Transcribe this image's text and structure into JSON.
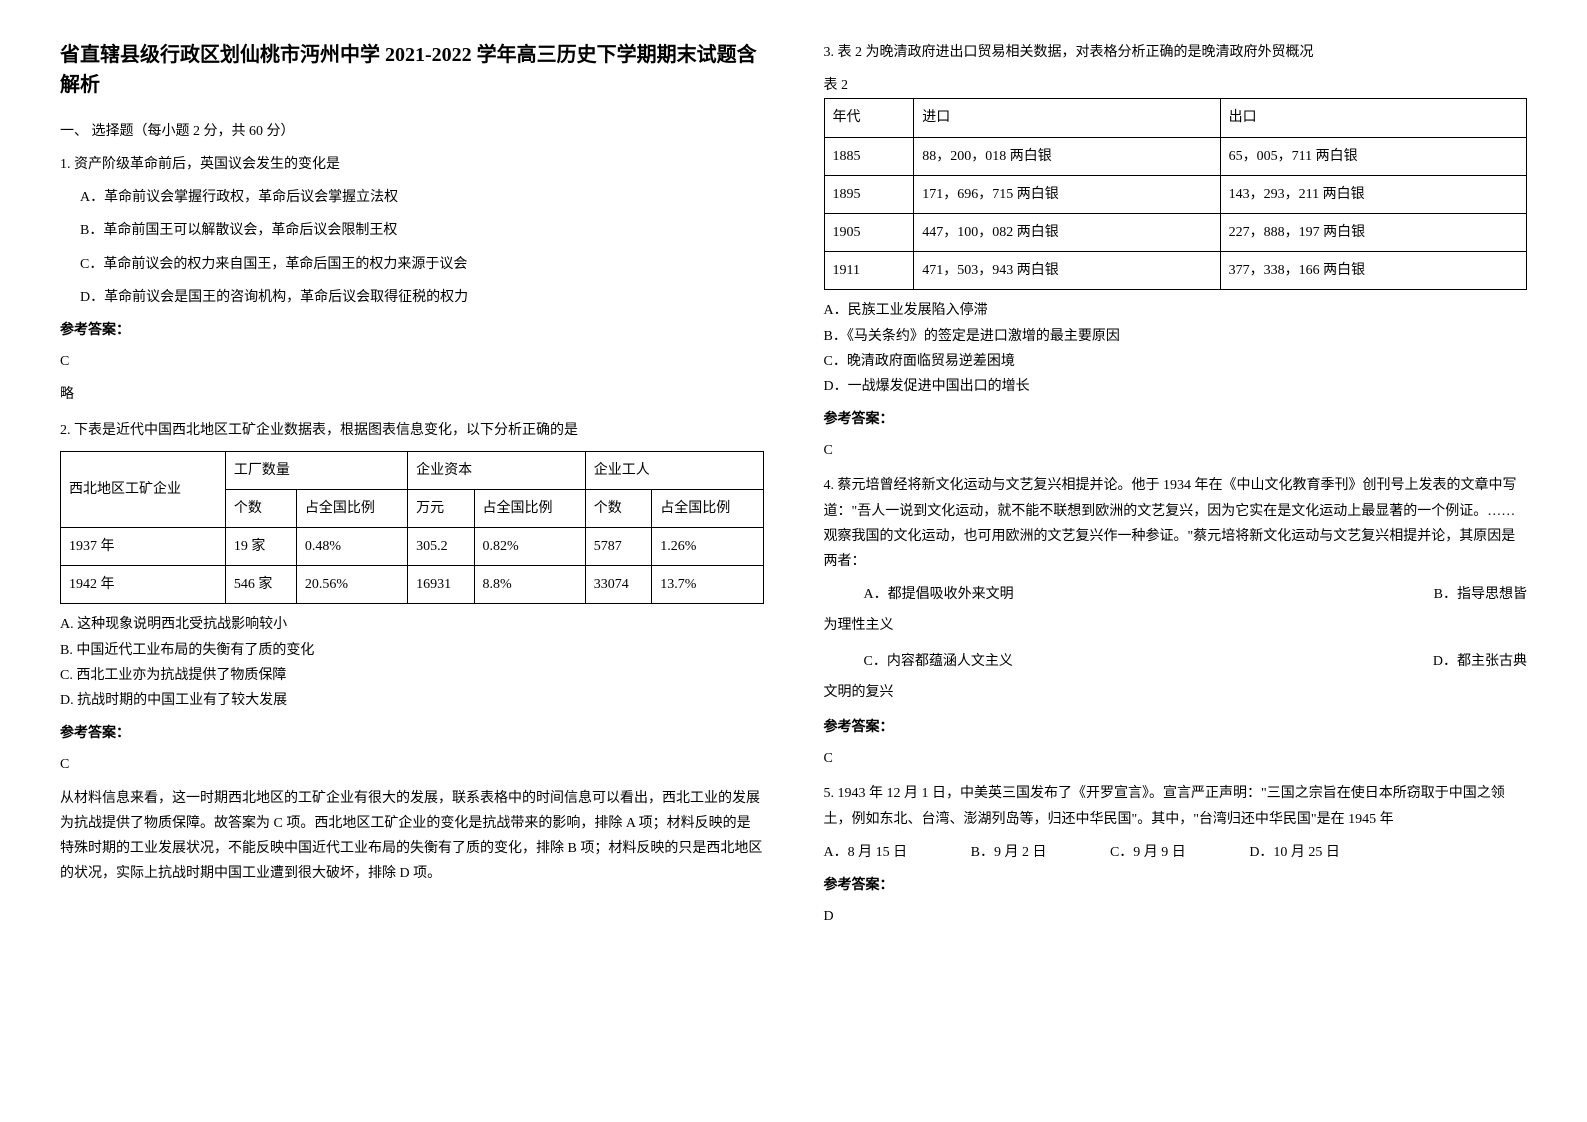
{
  "title": "省直辖县级行政区划仙桃市沔州中学 2021-2022 学年高三历史下学期期末试题含解析",
  "section1_heading": "一、 选择题（每小题 2 分，共 60 分）",
  "q1": {
    "text": "1. 资产阶级革命前后，英国议会发生的变化是",
    "optA": "A．革命前议会掌握行政权，革命后议会掌握立法权",
    "optB": "B．革命前国王可以解散议会，革命后议会限制王权",
    "optC": "C．革命前议会的权力来自国王，革命后国王的权力来源于议会",
    "optD": "D．革命前议会是国王的咨询机构，革命后议会取得征税的权力",
    "answer_label": "参考答案：",
    "answer": "C",
    "explanation": "略"
  },
  "q2": {
    "text": "2. 下表是近代中国西北地区工矿企业数据表，根据图表信息变化，以下分析正确的是",
    "table": {
      "h_region": "西北地区工矿企业",
      "h_factory": "工厂数量",
      "h_capital": "企业资本",
      "h_workers": "企业工人",
      "h_count": "个数",
      "h_ratio": "占全国比例",
      "h_wan": "万元",
      "r1": [
        "1937 年",
        "19 家",
        "0.48%",
        "305.2",
        "0.82%",
        "5787",
        "1.26%"
      ],
      "r2": [
        "1942 年",
        "546 家",
        "20.56%",
        "16931",
        "8.8%",
        "33074",
        "13.7%"
      ]
    },
    "optA": "A. 这种现象说明西北受抗战影响较小",
    "optB": "B. 中国近代工业布局的失衡有了质的变化",
    "optC": "C. 西北工业亦为抗战提供了物质保障",
    "optD": "D. 抗战时期的中国工业有了较大发展",
    "answer_label": "参考答案：",
    "answer": "C",
    "explanation": "从材料信息来看，这一时期西北地区的工矿企业有很大的发展，联系表格中的时间信息可以看出，西北工业的发展为抗战提供了物质保障。故答案为 C 项。西北地区工矿企业的变化是抗战带来的影响，排除 A 项；材料反映的是特殊时期的工业发展状况，不能反映中国近代工业布局的失衡有了质的变化，排除 B 项；材料反映的只是西北地区的状况，实际上抗战时期中国工业遭到很大破坏，排除 D 项。"
  },
  "q3": {
    "text": "3. 表 2 为晚清政府进出口贸易相关数据，对表格分析正确的是晚清政府外贸概况",
    "table_label": "表 2",
    "table": {
      "h_year": "年代",
      "h_import": "进口",
      "h_export": "出口",
      "rows": [
        [
          "1885",
          "88，200，018 两白银",
          "65，005，711 两白银"
        ],
        [
          "1895",
          "171，696，715 两白银",
          "143，293，211 两白银"
        ],
        [
          "1905",
          "447，100，082 两白银",
          "227，888，197 两白银"
        ],
        [
          "1911",
          "471，503，943 两白银",
          "377，338，166 两白银"
        ]
      ]
    },
    "optA": "A．民族工业发展陷入停滞",
    "optB": "B．《马关条约》的签定是进口激增的最主要原因",
    "optC": "C．晚清政府面临贸易逆差困境",
    "optD": "D．一战爆发促进中国出口的增长",
    "answer_label": "参考答案：",
    "answer": "C"
  },
  "q4": {
    "text": "4. 蔡元培曾经将新文化运动与文艺复兴相提并论。他于 1934 年在《中山文化教育季刊》创刊号上发表的文章中写道：\"吾人一说到文化运动，就不能不联想到欧洲的文艺复兴，因为它实在是文化运动上最显著的一个例证。……观察我国的文化运动，也可用欧洲的文艺复兴作一种参证。\"蔡元培将新文化运动与文艺复兴相提并论，其原因是两者：",
    "optA": "A．都提倡吸收外来文明",
    "optB": "B．指导思想皆",
    "optB_cont": "为理性主义",
    "optC": "C．内容都蕴涵人文主义",
    "optD": "D．都主张古典",
    "optD_cont": "文明的复兴",
    "answer_label": "参考答案：",
    "answer": "C"
  },
  "q5": {
    "text": "5. 1943 年 12 月 1 日，中美英三国发布了《开罗宣言》。宣言严正声明：\"三国之宗旨在使日本所窃取于中国之领土，例如东北、台湾、澎湖列岛等，归还中华民国\"。其中，\"台湾归还中华民国\"是在 1945 年",
    "optA": "A．8 月 15 日",
    "optB": "B．9 月 2 日",
    "optC": "C．9 月 9 日",
    "optD": "D．10 月 25 日",
    "answer_label": "参考答案：",
    "answer": "D"
  }
}
